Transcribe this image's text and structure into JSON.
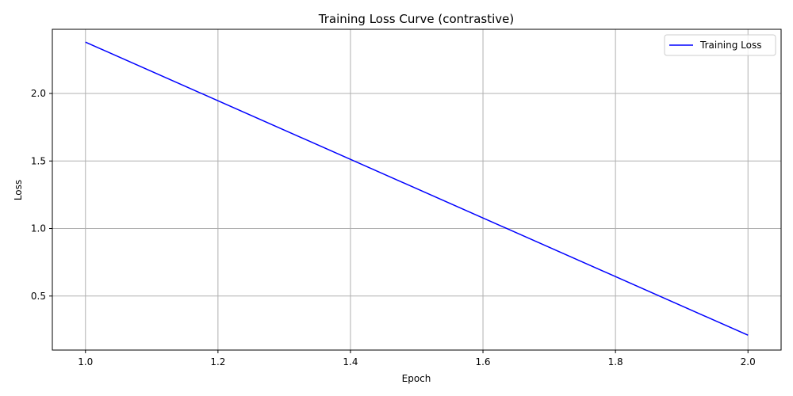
{
  "chart_data": {
    "type": "line",
    "title": "Training Loss Curve (contrastive)",
    "xlabel": "Epoch",
    "ylabel": "Loss",
    "x": [
      1.0,
      2.0
    ],
    "series": [
      {
        "name": "Training Loss",
        "values": [
          2.38,
          0.21
        ],
        "color": "#0000ff"
      }
    ],
    "xlim": [
      0.95,
      2.05
    ],
    "ylim": [
      0.1,
      2.475
    ],
    "xticks": [
      1.0,
      1.2,
      1.4,
      1.6,
      1.8,
      2.0
    ],
    "xtick_labels": [
      "1.0",
      "1.2",
      "1.4",
      "1.6",
      "1.8",
      "2.0"
    ],
    "yticks": [
      0.5,
      1.0,
      1.5,
      2.0
    ],
    "ytick_labels": [
      "0.5",
      "1.0",
      "1.5",
      "2.0"
    ],
    "grid": true,
    "legend_position": "top-right",
    "grid_color": "#b0b0b0"
  }
}
